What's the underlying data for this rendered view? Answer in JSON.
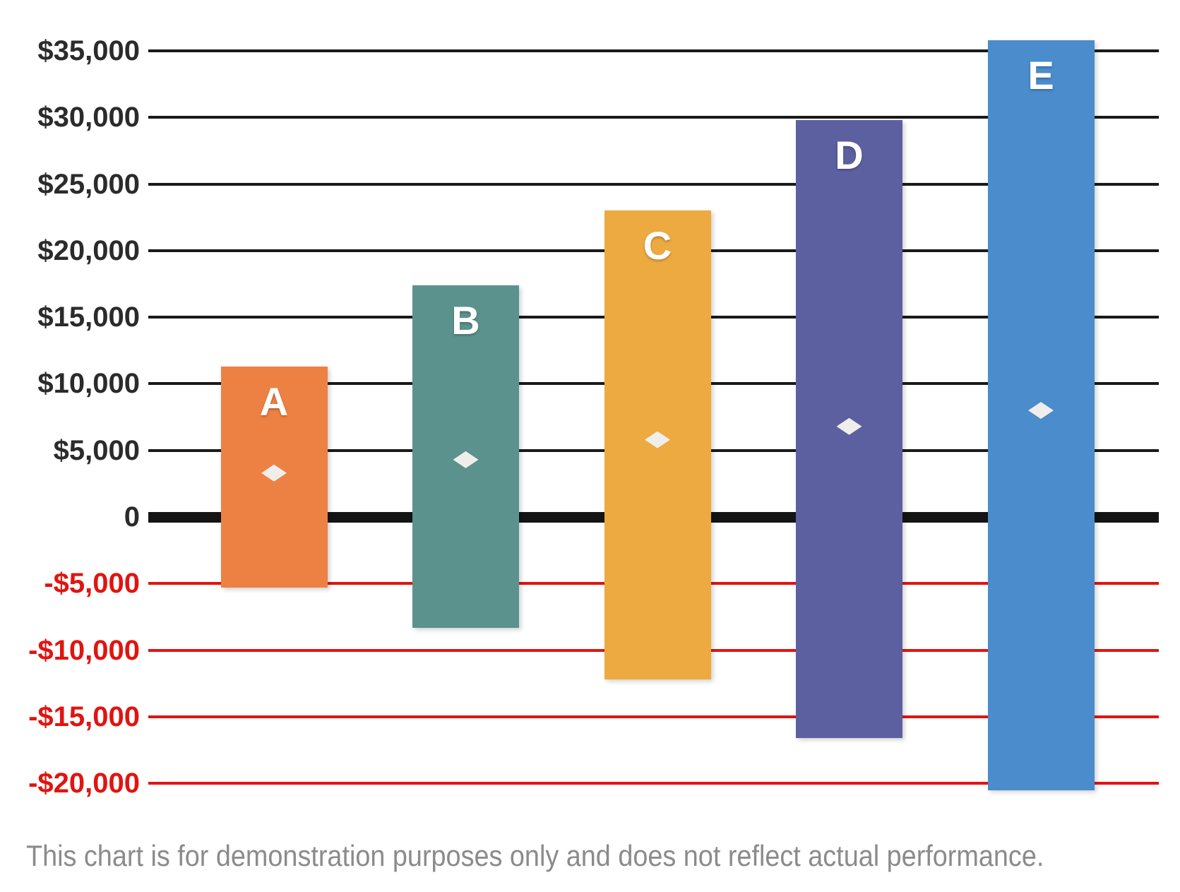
{
  "chart_data": {
    "type": "bar",
    "subtype": "floating-range-bar-with-markers",
    "categories": [
      "A",
      "B",
      "C",
      "D",
      "E"
    ],
    "series": [
      {
        "name": "range-low",
        "values": [
          -5300,
          -8300,
          -12200,
          -16600,
          -20500
        ]
      },
      {
        "name": "range-high",
        "values": [
          11300,
          17400,
          23000,
          29800,
          35800
        ]
      },
      {
        "name": "marker",
        "values": [
          3300,
          4300,
          5800,
          6800,
          8000
        ]
      }
    ],
    "bar_colors": [
      "#ED8144",
      "#5C928D",
      "#ECAA40",
      "#5D60A0",
      "#4A8CCC"
    ],
    "bar_label_color": "#FFFFFF",
    "marker_color": "#F0EEEB",
    "marker_shape": "diamond",
    "ylim": [
      -20000,
      35800
    ],
    "y_ticks": [
      {
        "label": "$35,000",
        "value": 35000,
        "style": "positive"
      },
      {
        "label": "$30,000",
        "value": 30000,
        "style": "positive"
      },
      {
        "label": "$25,000",
        "value": 25000,
        "style": "positive"
      },
      {
        "label": "$20,000",
        "value": 20000,
        "style": "positive"
      },
      {
        "label": "$15,000",
        "value": 15000,
        "style": "positive"
      },
      {
        "label": "$10,000",
        "value": 10000,
        "style": "positive"
      },
      {
        "label": "$5,000",
        "value": 5000,
        "style": "positive"
      },
      {
        "label": "0",
        "value": 0,
        "style": "zero"
      },
      {
        "label": "-$5,000",
        "value": -5000,
        "style": "negative"
      },
      {
        "label": "-$10,000",
        "value": -10000,
        "style": "negative"
      },
      {
        "label": "-$15,000",
        "value": -15000,
        "style": "negative"
      },
      {
        "label": "-$20,000",
        "value": -20000,
        "style": "negative"
      }
    ],
    "grid": "horizontal",
    "legend": "none",
    "colors": {
      "positive_grid": "#1A1A1A",
      "zero_line": "#141414",
      "negative_grid": "#E11410",
      "positive_tick_text": "#2B2B2B",
      "negative_tick_text": "#E11410",
      "caption_text": "#8B8B8B"
    },
    "caption": "This chart is for demonstration purposes only and does not reflect actual performance."
  }
}
